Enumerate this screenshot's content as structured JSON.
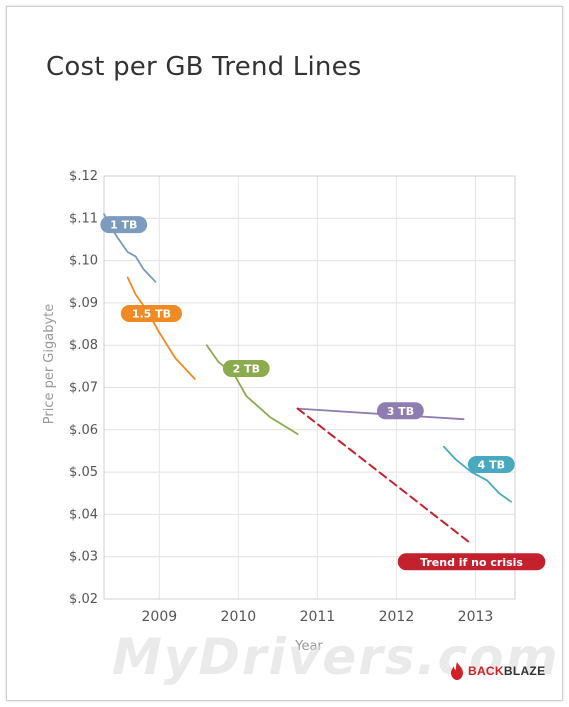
{
  "chart_data": {
    "type": "line",
    "title": "Cost per GB Trend Lines",
    "xlabel": "Year",
    "ylabel": "Price per Gigabyte",
    "x_ticks": [
      "2009",
      "2010",
      "2011",
      "2012",
      "2013"
    ],
    "y_ticks": [
      "$.02",
      "$.03",
      "$.04",
      "$.05",
      "$.06",
      "$.07",
      "$.08",
      "$.09",
      "$.10",
      "$.11",
      "$.12"
    ],
    "xlim": [
      2008.3,
      2013.5
    ],
    "ylim": [
      0.02,
      0.12
    ],
    "grid": true,
    "series": [
      {
        "name": "1 TB",
        "color": "#7c9bbe",
        "dashed": false,
        "points": [
          [
            2008.3,
            0.111
          ],
          [
            2008.45,
            0.106
          ],
          [
            2008.6,
            0.102
          ],
          [
            2008.7,
            0.101
          ],
          [
            2008.8,
            0.098
          ],
          [
            2008.95,
            0.095
          ]
        ]
      },
      {
        "name": "1.5 TB",
        "color": "#f08a24",
        "dashed": false,
        "points": [
          [
            2008.6,
            0.096
          ],
          [
            2008.7,
            0.092
          ],
          [
            2008.85,
            0.088
          ],
          [
            2009.0,
            0.083
          ],
          [
            2009.2,
            0.077
          ],
          [
            2009.45,
            0.072
          ]
        ]
      },
      {
        "name": "2 TB",
        "color": "#8cab4e",
        "dashed": false,
        "points": [
          [
            2009.6,
            0.08
          ],
          [
            2009.75,
            0.076
          ],
          [
            2009.95,
            0.073
          ],
          [
            2010.1,
            0.068
          ],
          [
            2010.4,
            0.063
          ],
          [
            2010.75,
            0.059
          ]
        ]
      },
      {
        "name": "3 TB",
        "color": "#8f7cb3",
        "dashed": false,
        "points": [
          [
            2010.75,
            0.065
          ],
          [
            2012.0,
            0.0635
          ],
          [
            2012.85,
            0.0625
          ]
        ]
      },
      {
        "name": "4 TB",
        "color": "#4aa9c0",
        "dashed": false,
        "points": [
          [
            2012.6,
            0.056
          ],
          [
            2012.75,
            0.053
          ],
          [
            2012.95,
            0.05
          ],
          [
            2013.15,
            0.048
          ],
          [
            2013.3,
            0.045
          ],
          [
            2013.45,
            0.043
          ]
        ]
      },
      {
        "name": "Trend if no crisis",
        "color": "#c4212f",
        "dashed": true,
        "points": [
          [
            2010.75,
            0.065
          ],
          [
            2012.95,
            0.033
          ]
        ]
      }
    ],
    "annotations": [
      {
        "text": "1 TB",
        "series": 0,
        "at": [
          2008.55,
          0.1085
        ]
      },
      {
        "text": "1.5 TB",
        "series": 1,
        "at": [
          2008.9,
          0.0875
        ]
      },
      {
        "text": "2 TB",
        "series": 2,
        "at": [
          2010.1,
          0.0745
        ]
      },
      {
        "text": "3 TB",
        "series": 3,
        "at": [
          2012.05,
          0.0645
        ]
      },
      {
        "text": "4 TB",
        "series": 4,
        "at": [
          2013.2,
          0.0518
        ]
      },
      {
        "text": "Trend if no crisis",
        "series": 5,
        "at": [
          2012.95,
          0.0288
        ]
      }
    ]
  },
  "logo": {
    "text_hot": "BACK",
    "text": "BLAZE"
  },
  "watermark": "MyDrivers.com"
}
